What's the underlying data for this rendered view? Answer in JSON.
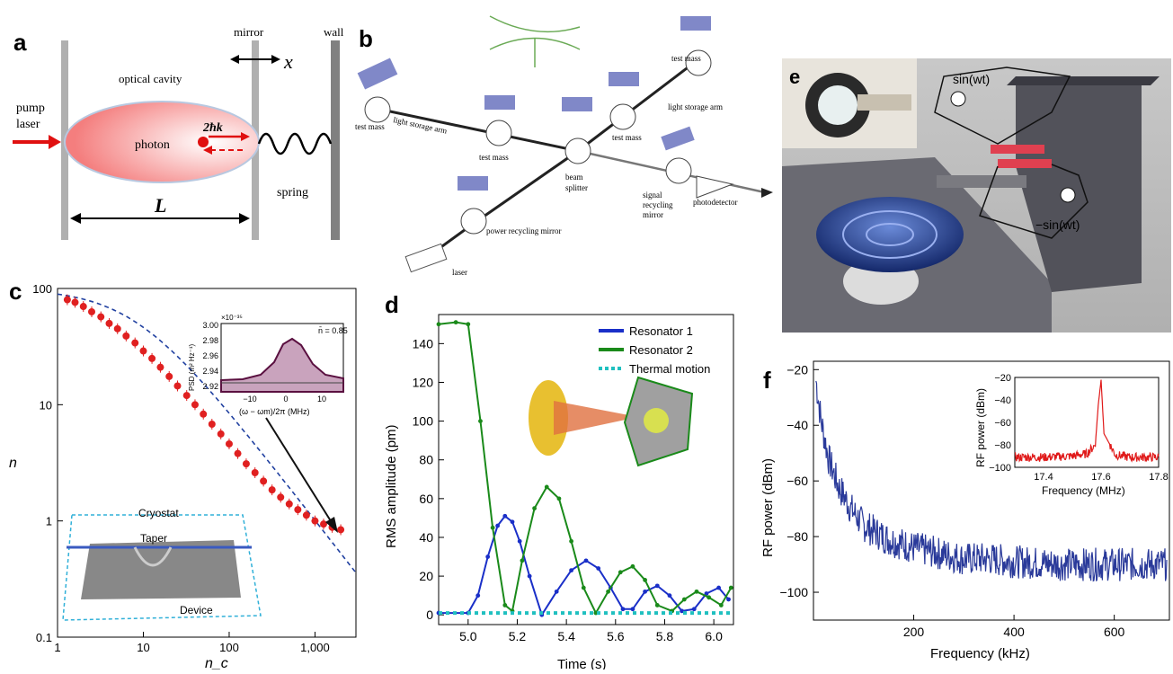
{
  "panels": {
    "a": {
      "letter": "a",
      "labels": {
        "mirror": "mirror",
        "wall": "wall",
        "x": "x",
        "optical_cavity": "optical cavity",
        "pump": "pump",
        "laser": "laser",
        "photon": "photon",
        "hbar_k": "2ħk",
        "spring": "spring",
        "L": "L"
      },
      "colors": {
        "cavity": "#f06a6a",
        "arrow": "#e01010"
      }
    },
    "b": {
      "letter": "b",
      "labels": {
        "test_mass_left": "test mass",
        "light_storage_arm_left": "light storage arm",
        "test_mass_mid": "test mass",
        "test_mass_right1": "test mass",
        "test_mass_right2": "test mass",
        "light_storage_arm_right": "light storage arm",
        "beam": "beam",
        "splitter": "splitter",
        "signal": "signal",
        "recycling": "recycling",
        "mirror": "mirror",
        "photodetector": "photodetector",
        "power_recycling_mirror": "power recycling mirror",
        "laser": "laser"
      }
    },
    "c": {
      "letter": "c",
      "ylabel": "n",
      "xlabel": "n_c",
      "xticks": [
        "1",
        "10",
        "100",
        "1,000"
      ],
      "yticks": [
        "0.1",
        "1",
        "10",
        "100"
      ],
      "inset": {
        "ylabel": "PSD (m² Hz⁻¹)",
        "exponent": "×10⁻³⁵",
        "annotation": "n̄ = 0.85",
        "xlabel": "(ω − ωm)/2π (MHz)",
        "yticks": [
          "2.92",
          "2.94",
          "2.96",
          "2.98",
          "3.00"
        ],
        "xticks": [
          "−10",
          "0",
          "10"
        ]
      },
      "device_labels": {
        "cryostat": "Cryostat",
        "taper": "Taper",
        "device": "Device"
      },
      "colors": {
        "points": "#e02020",
        "fit": "#2040a0",
        "inset_fill": "#c9a3bd",
        "inset_line": "#5a1040"
      }
    },
    "d": {
      "letter": "d",
      "ylabel": "RMS amplitude (pm)",
      "xlabel": "Time (s)",
      "xticks": [
        "5.0",
        "5.2",
        "5.4",
        "5.6",
        "5.8",
        "6.0"
      ],
      "yticks": [
        "0",
        "20",
        "40",
        "60",
        "80",
        "100",
        "120",
        "140"
      ],
      "legend": [
        "Resonator 1",
        "Resonator 2",
        "Thermal motion"
      ],
      "colors": {
        "res1": "#1a2fc8",
        "res2": "#1a8a1a",
        "thermal": "#20c0c0"
      }
    },
    "e": {
      "letter": "e",
      "labels": {
        "sin": "sin(wt)",
        "neg_sin": "−sin(wt)"
      }
    },
    "f": {
      "letter": "f",
      "ylabel": "RF power (dBm)",
      "xlabel": "Frequency (kHz)",
      "xticks": [
        "200",
        "400",
        "600"
      ],
      "yticks": [
        "−100",
        "−80",
        "−60",
        "−40",
        "−20"
      ],
      "inset": {
        "ylabel": "RF power (dBm)",
        "xlabel": "Frequency (MHz)",
        "xticks": [
          "17.4",
          "17.6",
          "17.8"
        ],
        "yticks": [
          "−100",
          "−80",
          "−60",
          "−40",
          "−20"
        ]
      },
      "colors": {
        "main": "#2a3a9a",
        "inset": "#e01a1a"
      }
    }
  },
  "chart_data": [
    {
      "type": "scatter",
      "panel": "c",
      "xlabel": "n_c",
      "ylabel": "n",
      "log_x": true,
      "log_y": true,
      "xlim": [
        1,
        3000
      ],
      "ylim": [
        0.1,
        100
      ],
      "x": [
        1.3,
        1.6,
        2.0,
        2.5,
        3.2,
        4.0,
        5.0,
        6.3,
        8,
        10,
        12.6,
        15.8,
        20,
        25,
        32,
        40,
        50,
        63,
        80,
        100,
        126,
        158,
        200,
        251,
        316,
        398,
        501,
        631,
        794,
        1000,
        1259,
        1585,
        1995
      ],
      "y": [
        80,
        76,
        70,
        63,
        57,
        50,
        45,
        39,
        34,
        29,
        25,
        21,
        17.5,
        14.5,
        12,
        10,
        8.3,
        6.8,
        5.6,
        4.6,
        3.8,
        3.1,
        2.6,
        2.2,
        1.85,
        1.6,
        1.4,
        1.25,
        1.12,
        1.0,
        0.94,
        0.88,
        0.84
      ]
    },
    {
      "type": "line",
      "panel": "d",
      "xlabel": "Time (s)",
      "ylabel": "RMS amplitude (pm)",
      "xlim": [
        4.88,
        6.08
      ],
      "ylim": [
        -5,
        155
      ],
      "series": [
        {
          "name": "Resonator 1",
          "x": [
            4.88,
            5.0,
            5.04,
            5.08,
            5.12,
            5.15,
            5.18,
            5.21,
            5.25,
            5.3,
            5.36,
            5.42,
            5.48,
            5.53,
            5.58,
            5.63,
            5.67,
            5.72,
            5.77,
            5.82,
            5.87,
            5.92,
            5.97,
            6.02,
            6.06
          ],
          "y": [
            1,
            1,
            10,
            30,
            46,
            51,
            48,
            38,
            20,
            0,
            12,
            23,
            28,
            24,
            14,
            3,
            3,
            12,
            15,
            10,
            2,
            3,
            11,
            14,
            8
          ]
        },
        {
          "name": "Resonator 2",
          "x": [
            4.88,
            4.95,
            5.0,
            5.05,
            5.1,
            5.15,
            5.18,
            5.22,
            5.27,
            5.32,
            5.37,
            5.42,
            5.47,
            5.52,
            5.57,
            5.62,
            5.67,
            5.72,
            5.77,
            5.83,
            5.88,
            5.93,
            5.98,
            6.03,
            6.07
          ],
          "y": [
            150,
            151,
            150,
            100,
            45,
            5,
            2,
            28,
            55,
            66,
            60,
            38,
            14,
            1,
            12,
            22,
            25,
            18,
            5,
            2,
            8,
            12,
            9,
            5,
            14
          ]
        },
        {
          "name": "Thermal motion",
          "x": [
            4.88,
            6.08
          ],
          "y": [
            1,
            1
          ]
        }
      ]
    },
    {
      "type": "line",
      "panel": "f",
      "xlabel": "Frequency (kHz)",
      "ylabel": "RF power (dBm)",
      "xlim": [
        0,
        710
      ],
      "ylim": [
        -110,
        -17
      ],
      "series": [
        {
          "x": [
            5,
            15,
            30,
            50,
            75,
            100,
            150,
            200,
            250,
            300,
            350,
            400,
            500,
            600,
            700
          ],
          "y": [
            -24,
            -38,
            -52,
            -62,
            -70,
            -76,
            -81,
            -84,
            -86,
            -88,
            -88,
            -89,
            -90,
            -90,
            -90
          ]
        }
      ]
    },
    {
      "type": "line",
      "panel": "f-inset",
      "xlabel": "Frequency (MHz)",
      "ylabel": "RF power (dBm)",
      "xlim": [
        17.3,
        17.8
      ],
      "ylim": [
        -100,
        -20
      ],
      "series": [
        {
          "x": [
            17.3,
            17.4,
            17.5,
            17.55,
            17.58,
            17.59,
            17.6,
            17.61,
            17.65,
            17.7,
            17.8
          ],
          "y": [
            -91,
            -91,
            -90,
            -88,
            -80,
            -45,
            -22,
            -70,
            -89,
            -91,
            -91
          ]
        }
      ]
    }
  ]
}
